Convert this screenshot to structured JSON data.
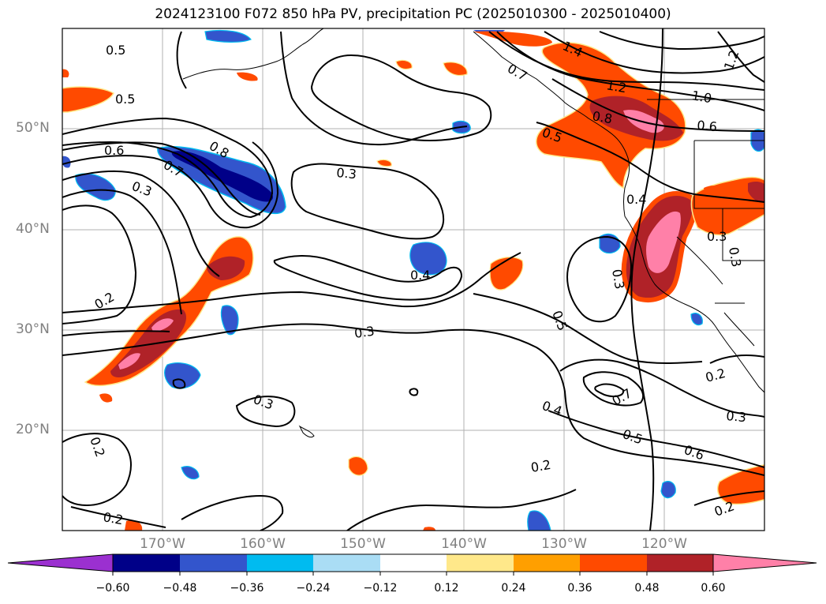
{
  "title": "2024123100 F072 850 hPa PV, precipitation PC (2025010300 - 2025010400)",
  "lat_labels": [
    "50°N",
    "40°N",
    "30°N",
    "20°N"
  ],
  "lon_labels": [
    "170°W",
    "160°W",
    "150°W",
    "140°W",
    "130°W",
    "120°W"
  ],
  "colorbar": {
    "ticks": [
      "−0.60",
      "−0.48",
      "−0.36",
      "−0.24",
      "−0.12",
      "0.12",
      "0.24",
      "0.36",
      "0.48",
      "0.60"
    ],
    "colors": [
      "#9b30d0",
      "#000088",
      "#3355cc",
      "#00bbf0",
      "#aaddf5",
      "#ffffff",
      "#ffe88a",
      "#ff9f00",
      "#ff4a00",
      "#b02228",
      "#ff80a8"
    ]
  },
  "contour_labels": [
    "0.5",
    "0.5",
    "0.6",
    "0.7",
    "0.8",
    "0.3",
    "0.2",
    "0.2",
    "0.2",
    "0.3",
    "0.3",
    "0.3",
    "0.4",
    "1.4",
    "0.7",
    "1.2",
    "1.0",
    "0.8",
    "0.6",
    "0.5",
    "1.2",
    "0.4",
    "0.3",
    "0.3",
    "0.3",
    "0.5",
    "0.7",
    "0.4",
    "0.5",
    "0.6",
    "0.2",
    "0.3",
    "0.2",
    "0.2"
  ]
}
